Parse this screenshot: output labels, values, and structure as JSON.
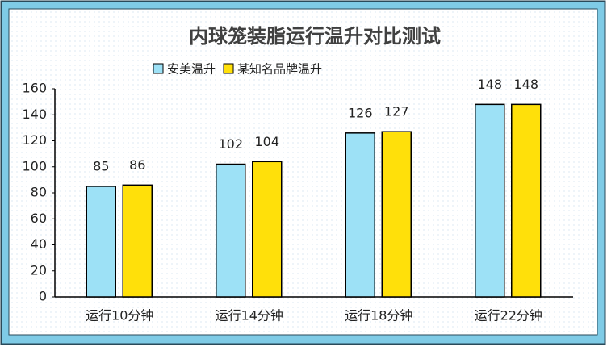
{
  "chart_data": {
    "type": "bar",
    "title": "内球笼装脂运行温升对比测试",
    "categories": [
      "运行10分钟",
      "运行14分钟",
      "运行18分钟",
      "运行22分钟"
    ],
    "series": [
      {
        "name": "安美温升",
        "color": "#9de1f6",
        "values": [
          85,
          102,
          126,
          148
        ]
      },
      {
        "name": "某知名品牌温升",
        "color": "#ffe00a",
        "values": [
          86,
          104,
          127,
          148
        ]
      }
    ],
    "ylim": [
      0,
      160
    ],
    "yticks": [
      0,
      20,
      40,
      60,
      80,
      100,
      120,
      140,
      160
    ],
    "legend": "top"
  }
}
